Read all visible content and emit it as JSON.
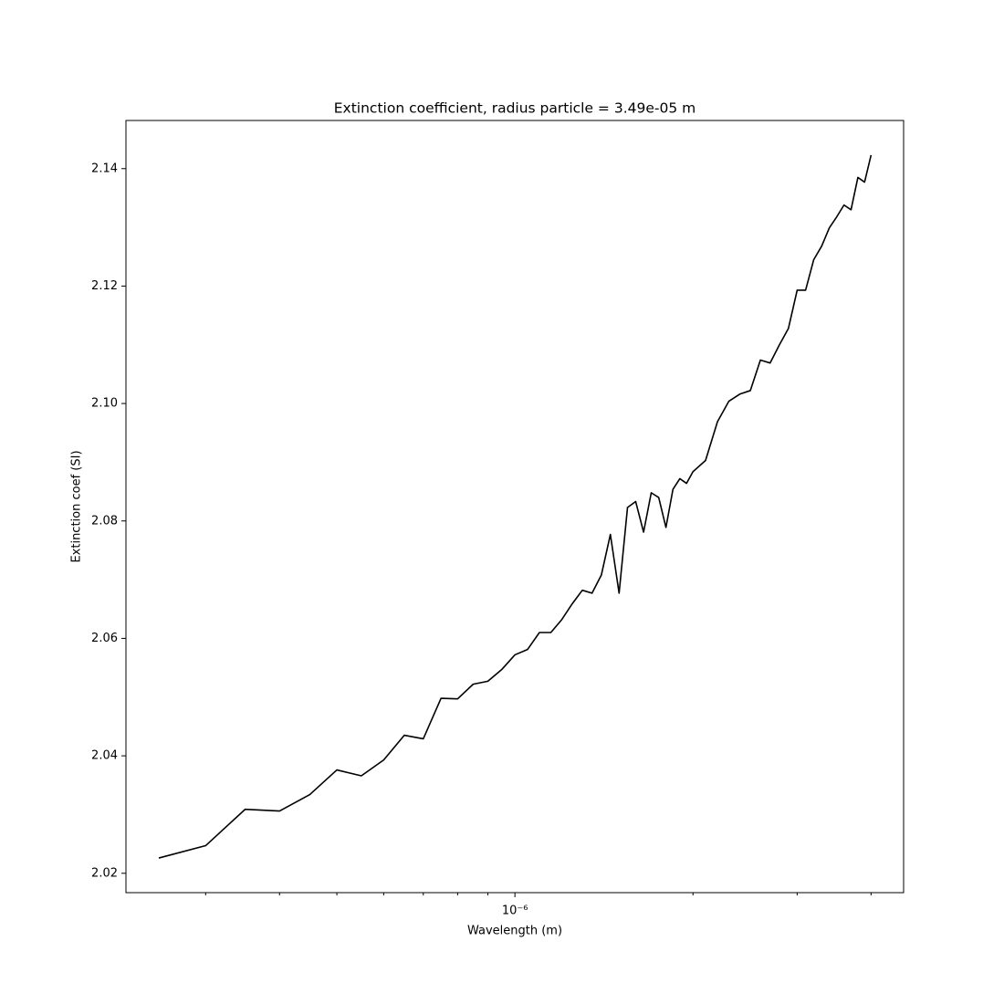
{
  "chart_data": {
    "type": "line",
    "title": "Extinction coefficient, radius particle = 3.49e-05 m",
    "xlabel": "Wavelength (m)",
    "ylabel": "Extinction coef (SI)",
    "xscale": "log",
    "xlim": [
      2.2e-07,
      4.54e-06
    ],
    "ylim": [
      2.0167,
      2.1482
    ],
    "xticks": [
      {
        "value": 1e-06,
        "label": "10⁻⁶"
      }
    ],
    "xminor_ticks": [
      3e-07,
      4e-07,
      5e-07,
      6e-07,
      7e-07,
      8e-07,
      9e-07,
      2e-06,
      3e-06,
      4e-06
    ],
    "yticks": [
      {
        "value": 2.02,
        "label": "2.02"
      },
      2.04,
      2.06,
      2.08,
      {
        "value": 2.1,
        "label": "2.10"
      },
      2.12,
      2.14
    ],
    "grid": false,
    "series": [
      {
        "color": "#000000",
        "x": [
          2.5e-07,
          3e-07,
          3.5e-07,
          4e-07,
          4.5e-07,
          5e-07,
          5.5e-07,
          6e-07,
          6.5e-07,
          7e-07,
          7.5e-07,
          8e-07,
          8.5e-07,
          9e-07,
          9.5e-07,
          1e-06,
          1.05e-06,
          1.1e-06,
          1.15e-06,
          1.2e-06,
          1.25e-06,
          1.3e-06,
          1.35e-06,
          1.4e-06,
          1.45e-06,
          1.5e-06,
          1.55e-06,
          1.6e-06,
          1.65e-06,
          1.7e-06,
          1.75e-06,
          1.8e-06,
          1.85e-06,
          1.9e-06,
          1.95e-06,
          2e-06,
          2.1e-06,
          2.2e-06,
          2.3e-06,
          2.4e-06,
          2.5e-06,
          2.6e-06,
          2.7e-06,
          2.8e-06,
          2.9e-06,
          3e-06,
          3.1e-06,
          3.2e-06,
          3.3e-06,
          3.4e-06,
          3.5e-06,
          3.6e-06,
          3.7e-06,
          3.8e-06,
          3.9e-06,
          4e-06
        ],
        "values": [
          2.0226,
          2.0247,
          2.0309,
          2.0306,
          2.0334,
          2.0376,
          2.0366,
          2.0393,
          2.0435,
          2.0429,
          2.0498,
          2.0497,
          2.0522,
          2.0527,
          2.0547,
          2.0572,
          2.0581,
          2.061,
          2.061,
          2.0632,
          2.0659,
          2.0682,
          2.0677,
          2.0708,
          2.0777,
          2.0677,
          2.0823,
          2.0833,
          2.0781,
          2.0848,
          2.084,
          2.0789,
          2.0854,
          2.0872,
          2.0864,
          2.0884,
          2.0903,
          2.0969,
          2.1004,
          2.1016,
          2.1022,
          2.1074,
          2.1069,
          2.11,
          2.1128,
          2.1193,
          2.1193,
          2.1245,
          2.1268,
          2.1299,
          2.1318,
          2.1338,
          2.133,
          2.1385,
          2.1377,
          2.1423
        ]
      }
    ]
  }
}
